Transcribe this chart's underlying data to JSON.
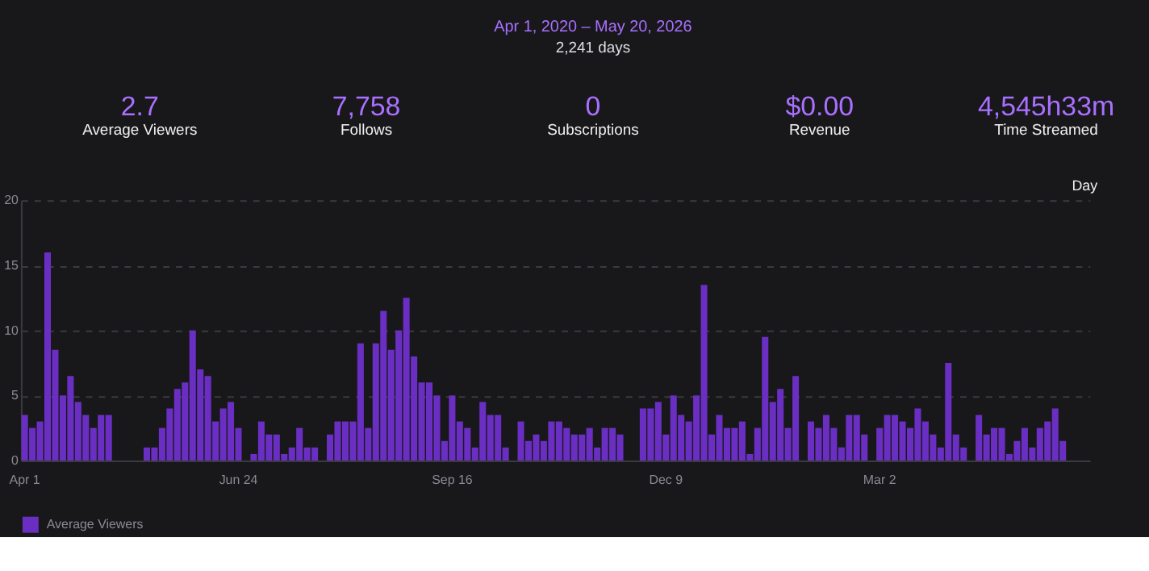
{
  "chart_data": {
    "type": "bar",
    "categories": [
      "Apr 1",
      null,
      null,
      null,
      null,
      null,
      null,
      null,
      null,
      null,
      null,
      null,
      null,
      null,
      null,
      null,
      null,
      null,
      null,
      null,
      null,
      null,
      null,
      null,
      null,
      null,
      null,
      null,
      "Jun 24",
      null,
      null,
      null,
      null,
      null,
      null,
      null,
      null,
      null,
      null,
      null,
      null,
      null,
      null,
      null,
      null,
      null,
      null,
      null,
      null,
      null,
      null,
      null,
      null,
      null,
      null,
      null,
      "Sep 16",
      null,
      null,
      null,
      null,
      null,
      null,
      null,
      null,
      null,
      null,
      null,
      null,
      null,
      null,
      null,
      null,
      null,
      null,
      null,
      null,
      null,
      null,
      null,
      null,
      null,
      null,
      null,
      "Dec 9",
      null,
      null,
      null,
      null,
      null,
      null,
      null,
      null,
      null,
      null,
      null,
      null,
      null,
      null,
      null,
      null,
      null,
      null,
      null,
      null,
      null,
      null,
      null,
      null,
      null,
      null,
      null,
      "Mar 2",
      null,
      null,
      null,
      null,
      null,
      null,
      null,
      null,
      null,
      null,
      null,
      null,
      null,
      null,
      null,
      null,
      null,
      null,
      null,
      null,
      null,
      null,
      null,
      null,
      null,
      null,
      null
    ],
    "series": [
      {
        "name": "Average Viewers",
        "color": "#6a2fc2",
        "values": [
          3.5,
          2.5,
          3,
          16,
          8.5,
          5,
          6.5,
          4.5,
          3.5,
          2.5,
          3.5,
          3.5,
          0,
          0,
          0,
          0,
          1,
          1,
          2.5,
          4,
          5.5,
          6,
          10,
          7,
          6.5,
          3,
          4,
          4.5,
          2.5,
          0,
          0.5,
          3,
          2,
          2,
          0.5,
          1,
          2.5,
          1,
          1,
          0,
          2,
          3,
          3,
          3,
          9,
          2.5,
          9,
          11.5,
          8.5,
          10,
          12.5,
          8,
          6,
          6,
          5,
          1.5,
          5,
          3,
          2.5,
          1,
          4.5,
          3.5,
          3.5,
          1,
          0,
          3,
          1.5,
          2,
          1.5,
          3,
          3,
          2.5,
          2,
          2,
          2.5,
          1,
          2.5,
          2.5,
          2,
          0,
          0,
          4,
          4,
          4.5,
          2,
          5,
          3.5,
          3,
          5,
          13.5,
          2,
          3.5,
          2.5,
          2.5,
          3,
          0.5,
          2.5,
          9.5,
          4.5,
          5.5,
          2.5,
          6.5,
          0,
          3,
          2.5,
          3.5,
          2.5,
          1,
          3.5,
          3.5,
          2,
          0,
          2.5,
          3.5,
          3.5,
          3,
          2.5,
          4,
          3,
          2,
          1,
          7.5,
          2,
          1,
          0,
          3.5,
          2,
          2.5,
          2.5,
          0.5,
          1.5,
          2.5,
          1,
          2.5,
          3,
          4,
          1.5,
          0,
          0,
          0
        ]
      }
    ],
    "ylim": [
      0,
      20
    ],
    "yticks": [
      0,
      5,
      10,
      15,
      20
    ],
    "grid": "y",
    "legend": "bottom",
    "annotations": [
      "Apr 1, 2020 – May 20, 2026",
      "2,241 days",
      "2.7",
      "Average Viewers",
      "7,758",
      "Follows",
      "0",
      "Subscriptions",
      "$0.00",
      "Revenue",
      "4,545h33m",
      "Time Streamed",
      "Day"
    ]
  }
}
